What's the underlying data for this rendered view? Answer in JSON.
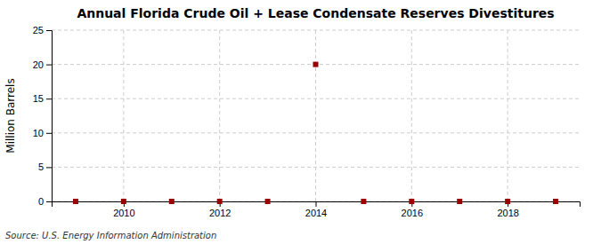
{
  "chart_data": {
    "type": "scatter",
    "title": "Annual Florida Crude Oil + Lease Condensate Reserves Divestitures",
    "ylabel": "Million Barrels",
    "annotations": [
      "Source: U.S. Energy Information Administration"
    ],
    "x": [
      2009,
      2010,
      2011,
      2012,
      2013,
      2014,
      2015,
      2016,
      2017,
      2018,
      2019
    ],
    "values": [
      0.0,
      0.0,
      0.0,
      0.0,
      0.0,
      20.0,
      0.0,
      0.0,
      0.0,
      0.0,
      0.0
    ],
    "color": "#990000",
    "marker": "square",
    "xlim": [
      2008.5,
      2019.5
    ],
    "ylim": [
      0,
      25
    ],
    "xticks": [
      2010,
      2012,
      2014,
      2016,
      2018
    ],
    "yticks": [
      0,
      5,
      10,
      15,
      20,
      25
    ],
    "grid": true
  }
}
